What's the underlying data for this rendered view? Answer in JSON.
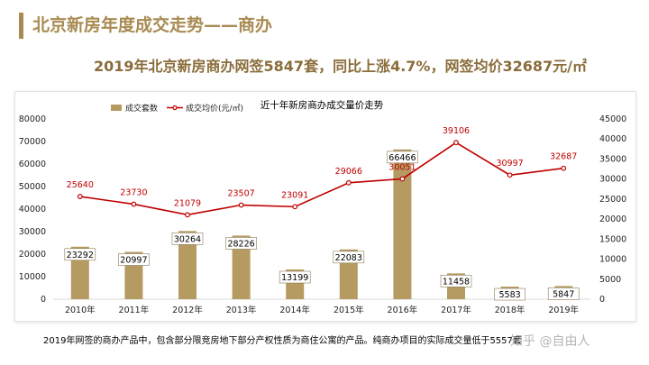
{
  "page": {
    "title": "北京新房年度成交走势——商办",
    "headline": "2019年北京新房商办网签5847套，同比上涨4.7%，网签均价32687元/㎡",
    "note": "2019年网签的商办产品中，包含部分限竞房地下部分产权性质为商住公寓的产品。纯商办项目的实际成交量低于5557套",
    "watermark": "知乎 @自由人"
  },
  "colors": {
    "accent": "#a88b52",
    "bar": "#b59b62",
    "line": "#c00000"
  },
  "chart_data": {
    "type": "bar",
    "title": "近十年新房商办成交量价走势",
    "categories": [
      "2010年",
      "2011年",
      "2012年",
      "2013年",
      "2014年",
      "2015年",
      "2016年",
      "2017年",
      "2018年",
      "2019年"
    ],
    "series": [
      {
        "name": "成交套数",
        "type": "bar",
        "axis": "left",
        "values": [
          23292,
          20997,
          30264,
          28226,
          13199,
          22083,
          66466,
          11458,
          5583,
          5847
        ]
      },
      {
        "name": "成交均价(元/㎡)",
        "type": "line",
        "axis": "right",
        "values": [
          25640,
          23730,
          21079,
          23507,
          23091,
          29066,
          30051,
          39106,
          30997,
          32687
        ]
      }
    ],
    "y_left": {
      "min": 0,
      "max": 80000,
      "ticks": [
        0,
        10000,
        20000,
        30000,
        40000,
        50000,
        60000,
        70000,
        80000
      ]
    },
    "y_right": {
      "min": 0,
      "max": 45000,
      "ticks": [
        0,
        5000,
        10000,
        15000,
        20000,
        25000,
        30000,
        35000,
        40000,
        45000
      ]
    },
    "legend": "top-left",
    "grid": false
  }
}
